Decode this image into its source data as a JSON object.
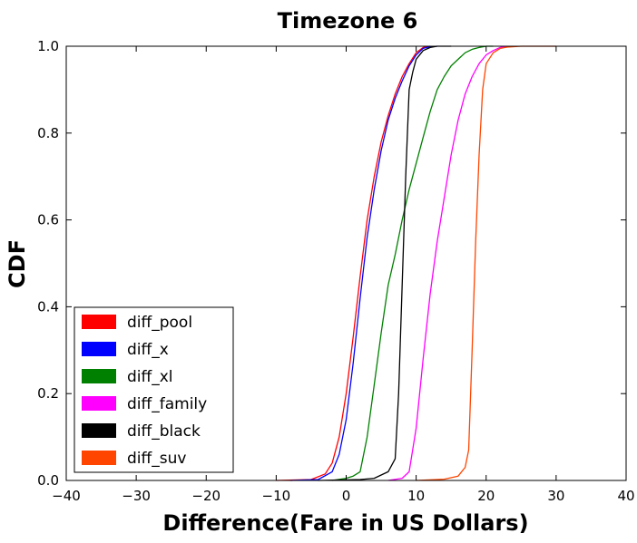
{
  "chart_data": {
    "type": "line",
    "title": "Timezone 6",
    "xlabel": "Difference(Fare in US Dollars)",
    "ylabel": "CDF",
    "xlim": [
      -40,
      40
    ],
    "ylim": [
      0,
      1
    ],
    "xticks": [
      -40,
      -30,
      -20,
      -10,
      0,
      10,
      20,
      30,
      40
    ],
    "xtick_labels": [
      "−40",
      "−30",
      "−20",
      "−10",
      "0",
      "10",
      "20",
      "30",
      "40"
    ],
    "yticks": [
      0,
      0.2,
      0.4,
      0.6,
      0.8,
      1.0
    ],
    "ytick_labels": [
      "0.0",
      "0.2",
      "0.4",
      "0.6",
      "0.8",
      "1.0"
    ],
    "grid": false,
    "legend_position": "lower-left",
    "series": [
      {
        "name": "diff_pool",
        "color": "#ff0000",
        "x": [
          -10,
          -5,
          -3,
          -2,
          -1,
          0,
          1,
          2,
          3,
          4,
          5,
          6,
          7,
          8,
          9,
          10,
          11,
          12
        ],
        "y": [
          0,
          0.002,
          0.015,
          0.04,
          0.1,
          0.2,
          0.33,
          0.47,
          0.6,
          0.7,
          0.78,
          0.84,
          0.89,
          0.93,
          0.96,
          0.985,
          0.997,
          1.0
        ]
      },
      {
        "name": "diff_x",
        "color": "#0000ff",
        "x": [
          -8,
          -4,
          -2,
          -1,
          0,
          1,
          2,
          3,
          4,
          5,
          6,
          7,
          8,
          9,
          10,
          11,
          12,
          13
        ],
        "y": [
          0,
          0.002,
          0.02,
          0.06,
          0.14,
          0.27,
          0.42,
          0.56,
          0.67,
          0.76,
          0.83,
          0.88,
          0.92,
          0.955,
          0.98,
          0.995,
          0.999,
          1.0
        ]
      },
      {
        "name": "diff_xl",
        "color": "#008000",
        "x": [
          -2,
          0,
          1,
          2,
          3,
          4,
          5,
          6,
          7,
          8,
          9,
          10,
          11,
          12,
          13,
          14,
          15,
          16,
          17,
          18,
          19,
          20,
          21
        ],
        "y": [
          0,
          0.005,
          0.01,
          0.02,
          0.1,
          0.22,
          0.34,
          0.45,
          0.52,
          0.6,
          0.67,
          0.73,
          0.79,
          0.85,
          0.9,
          0.93,
          0.955,
          0.97,
          0.985,
          0.993,
          0.997,
          1.0,
          1.0
        ]
      },
      {
        "name": "diff_family",
        "color": "#ff00ff",
        "x": [
          6,
          8,
          9,
          10,
          11,
          12,
          13,
          14,
          15,
          16,
          17,
          18,
          19,
          20,
          21,
          22,
          23
        ],
        "y": [
          0,
          0.005,
          0.02,
          0.12,
          0.28,
          0.43,
          0.55,
          0.65,
          0.75,
          0.83,
          0.89,
          0.93,
          0.96,
          0.98,
          0.99,
          0.997,
          1.0
        ]
      },
      {
        "name": "diff_black",
        "color": "#000000",
        "x": [
          -4,
          2,
          4,
          6,
          7,
          7.5,
          8,
          8.5,
          9,
          9.5,
          10,
          11,
          12,
          13,
          15
        ],
        "y": [
          0,
          0.002,
          0.005,
          0.02,
          0.05,
          0.2,
          0.45,
          0.7,
          0.9,
          0.94,
          0.97,
          0.99,
          0.997,
          1.0,
          1.0
        ]
      },
      {
        "name": "diff_suv",
        "color": "#ff4500",
        "x": [
          10,
          14,
          16,
          17,
          17.5,
          18,
          18.5,
          19,
          19.5,
          20,
          21,
          22,
          23,
          25,
          30
        ],
        "y": [
          0,
          0.003,
          0.01,
          0.03,
          0.07,
          0.3,
          0.55,
          0.75,
          0.9,
          0.96,
          0.985,
          0.995,
          0.998,
          1.0,
          1.0
        ]
      }
    ]
  }
}
